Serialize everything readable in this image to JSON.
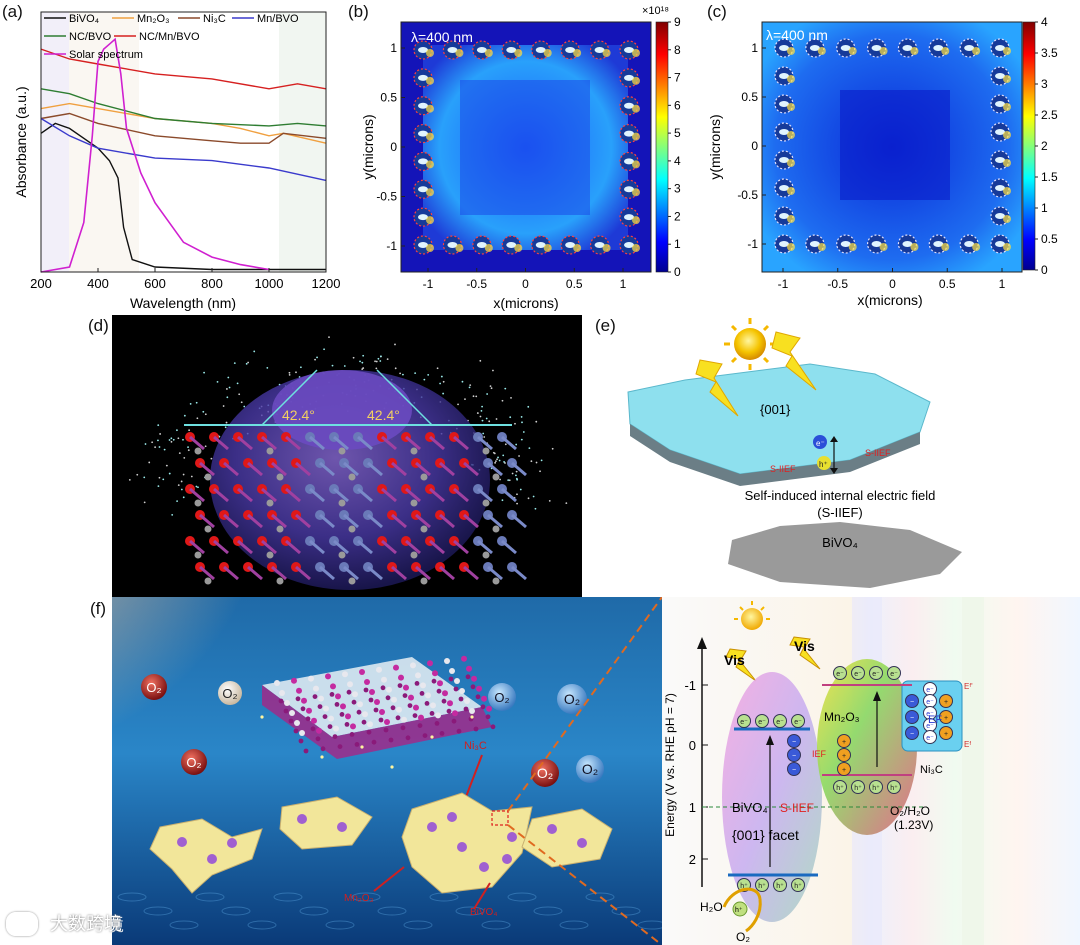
{
  "panels": {
    "a": {
      "label": "(a)"
    },
    "b": {
      "label": "(b)"
    },
    "c": {
      "label": "(c)"
    },
    "d": {
      "label": "(d)"
    },
    "e": {
      "label": "(e)"
    },
    "f": {
      "label": "(f)"
    }
  },
  "chart_data": [
    {
      "type": "line",
      "panel": "a",
      "xlabel": "Wavelength (nm)",
      "ylabel": "Absorbance (a.u.)",
      "xlim": [
        200,
        1200
      ],
      "xticks": [
        "200",
        "400",
        "600",
        "800",
        "1000",
        "1200"
      ],
      "legend": [
        {
          "name": "BiVO₄",
          "color": "#111111"
        },
        {
          "name": "Mn₂O₃",
          "color": "#f0a040"
        },
        {
          "name": "Ni₃C",
          "color": "#8b4a2b"
        },
        {
          "name": "Mn/BVO",
          "color": "#3a3acc"
        },
        {
          "name": "NC/BVO",
          "color": "#2e7d32"
        },
        {
          "name": "NC/Mn/BVO",
          "color": "#d62020"
        },
        {
          "name": "Solar spectrum",
          "color": "#d020d0"
        }
      ],
      "series": [
        {
          "name": "BiVO₄",
          "x": [
            200,
            250,
            300,
            350,
            400,
            440,
            470,
            490,
            520,
            600,
            800,
            1000,
            1200
          ],
          "y": [
            0.56,
            0.6,
            0.58,
            0.54,
            0.5,
            0.45,
            0.38,
            0.18,
            0.05,
            0.02,
            0.01,
            0.01,
            0.01
          ]
        },
        {
          "name": "Mn₂O₃",
          "x": [
            200,
            300,
            400,
            600,
            800,
            900,
            1000,
            1050,
            1200
          ],
          "y": [
            0.66,
            0.68,
            0.66,
            0.62,
            0.6,
            0.58,
            0.55,
            0.56,
            0.52
          ]
        },
        {
          "name": "Ni₃C",
          "x": [
            200,
            300,
            400,
            600,
            800,
            900,
            1000,
            1050,
            1200
          ],
          "y": [
            0.62,
            0.64,
            0.6,
            0.55,
            0.53,
            0.52,
            0.52,
            0.56,
            0.54
          ]
        },
        {
          "name": "Mn/BVO",
          "x": [
            200,
            300,
            400,
            600,
            800,
            1000,
            1200
          ],
          "y": [
            0.62,
            0.55,
            0.5,
            0.46,
            0.45,
            0.42,
            0.37
          ]
        },
        {
          "name": "NC/BVO",
          "x": [
            200,
            300,
            400,
            600,
            800,
            1000,
            1100,
            1200
          ],
          "y": [
            0.74,
            0.72,
            0.68,
            0.62,
            0.6,
            0.59,
            0.6,
            0.59
          ]
        },
        {
          "name": "NC/Mn/BVO",
          "x": [
            200,
            300,
            400,
            600,
            800,
            1000,
            1100,
            1200
          ],
          "y": [
            0.9,
            0.86,
            0.84,
            0.8,
            0.78,
            0.74,
            0.76,
            0.74
          ]
        },
        {
          "name": "Solar spectrum",
          "x": [
            200,
            300,
            350,
            380,
            400,
            420,
            440,
            460,
            480,
            500,
            550,
            600,
            700,
            800,
            900,
            1000
          ],
          "y": [
            0.0,
            0.02,
            0.2,
            0.55,
            0.85,
            0.9,
            0.92,
            0.94,
            0.8,
            0.58,
            0.4,
            0.28,
            0.12,
            0.06,
            0.03,
            0.01
          ]
        }
      ]
    },
    {
      "type": "heatmap",
      "panel": "b",
      "annotation": "λ=400 nm",
      "xlabel": "x(microns)",
      "ylabel": "y(microns)",
      "xticks": [
        "-1",
        "-0.5",
        "0",
        "0.5",
        "1"
      ],
      "yticks": [
        "1",
        "0.5",
        "0",
        "-0.5",
        "-1"
      ],
      "colorbar_ticks": [
        "9",
        "8",
        "7",
        "6",
        "5",
        "4",
        "3",
        "2",
        "1",
        "0"
      ],
      "colorbar_exponent": "×10¹⁸"
    },
    {
      "type": "heatmap",
      "panel": "c",
      "annotation": "λ=400 nm",
      "xlabel": "x(microns)",
      "ylabel": "y(microns)",
      "xticks": [
        "-1",
        "-0.5",
        "0",
        "0.5",
        "1"
      ],
      "yticks": [
        "1",
        "0.5",
        "0",
        "-0.5",
        "-1"
      ],
      "colorbar_ticks": [
        "4",
        "3.5",
        "3",
        "2.5",
        "2",
        "1.5",
        "1",
        "0.5",
        "0"
      ]
    }
  ],
  "d": {
    "angle_left": "42.4°",
    "angle_right": "42.4°"
  },
  "e": {
    "facet": "{001}",
    "electron": "e⁻",
    "hole": "h⁺",
    "siief_left": "S-IIEF",
    "siief_right": "S-IIEF",
    "caption_line1": "Self-induced internal electric field",
    "caption_line2": "(S-IIEF)",
    "substrate": "BiVO₄"
  },
  "f": {
    "o2_labels": [
      "O₂",
      "O₂",
      "O₂",
      "O₂",
      "O₂",
      "O₂",
      "O₂"
    ],
    "ni3c_label": "Ni₃C",
    "mn2o3_label": "Mn₂O₃",
    "bivo4_label": "BiVO₄",
    "diagram": {
      "yaxis_label": "Energy (V vs. RHE pH = 7)",
      "yticks": [
        "-1",
        "0",
        "1",
        "2"
      ],
      "vis_left": "Vis",
      "vis_right": "Vis",
      "bivo4": "BiVO₄",
      "facet": "{001}  facet",
      "siief": "S-IIEF",
      "mn2o3": "Mn₂O₃",
      "ni3c": "Ni₃C",
      "ief": "IEF",
      "ef": "EF",
      "ef_top": "Eᶠ'",
      "ef_bottom": "Eᶠ",
      "o2_h2o": "O₂/H₂O",
      "o2_h2o_v": "(1.23V)",
      "h2o": "H₂O",
      "o2": "O₂",
      "electron": "e⁻",
      "hole": "h⁺"
    },
    "watermark": "大数跨境"
  }
}
